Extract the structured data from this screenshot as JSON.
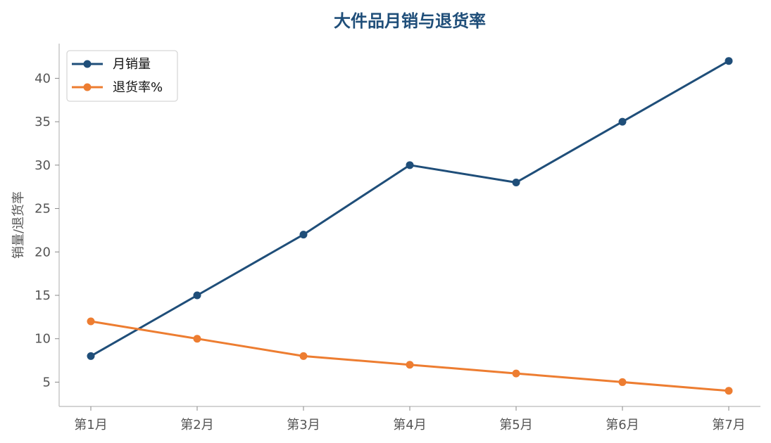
{
  "chart_data": {
    "type": "line",
    "title": "大件品月销与退货率",
    "ylabel": "销量/退货率",
    "xlabel": "",
    "categories": [
      "第1月",
      "第2月",
      "第3月",
      "第4月",
      "第5月",
      "第6月",
      "第7月"
    ],
    "ylim": [
      2.2,
      44
    ],
    "yticks": [
      5,
      10,
      15,
      20,
      25,
      30,
      35,
      40
    ],
    "grid": false,
    "legend_position": "top-left",
    "series": [
      {
        "name": "月销量",
        "color": "#1f4e79",
        "values": [
          8,
          15,
          22,
          30,
          28,
          35,
          42
        ]
      },
      {
        "name": "退货率%",
        "color": "#ed7d31",
        "values": [
          12,
          10,
          8,
          7,
          6,
          5,
          4
        ]
      }
    ]
  }
}
